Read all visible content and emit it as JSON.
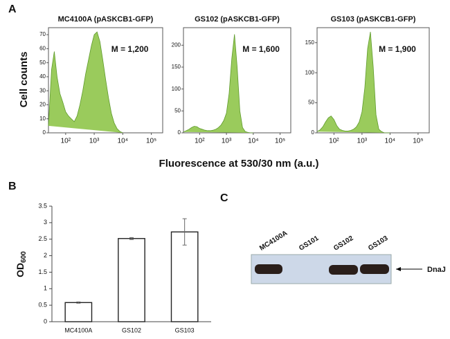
{
  "labels": {
    "panel_a": "A",
    "panel_b": "B",
    "panel_c": "C",
    "cell_counts": "Cell counts",
    "fluorescence": "Fluorescence at 530/30 nm (a.u.)"
  },
  "chart_data": [
    {
      "type": "area",
      "title": "MC4100A (pASKCB1-GFP)",
      "annotation": "M = 1,200",
      "color": "#9acb5c",
      "log_x": true,
      "x": [
        25,
        32,
        40,
        50,
        63,
        79,
        100,
        126,
        158,
        200,
        251,
        316,
        398,
        501,
        631,
        794,
        1000,
        1259,
        1585,
        1995,
        2512,
        3162,
        3981,
        5012,
        6310,
        7943,
        10000
      ],
      "values": [
        5,
        45,
        58,
        40,
        28,
        22,
        15,
        12,
        10,
        8,
        12,
        20,
        30,
        42,
        52,
        62,
        70,
        72,
        65,
        52,
        38,
        25,
        14,
        7,
        3,
        1,
        0
      ],
      "xlim": [
        25,
        250000
      ],
      "xticks": [
        {
          "value": 100,
          "label": "10²"
        },
        {
          "value": 1000,
          "label": "10³"
        },
        {
          "value": 10000,
          "label": "10⁴"
        },
        {
          "value": 100000,
          "label": "10⁵"
        }
      ],
      "ylim": [
        0,
        75
      ],
      "yticks": [
        0,
        10,
        20,
        30,
        40,
        50,
        60,
        70
      ]
    },
    {
      "type": "area",
      "title": "GS102 (pASKCB1-GFP)",
      "annotation": "M = 1,600",
      "color": "#9acb5c",
      "log_x": true,
      "x": [
        25,
        32,
        40,
        50,
        63,
        79,
        100,
        126,
        158,
        200,
        251,
        316,
        398,
        501,
        631,
        794,
        1000,
        1259,
        1585,
        1995,
        2512,
        3162,
        3981,
        5012,
        6310,
        7943,
        10000
      ],
      "values": [
        2,
        5,
        8,
        12,
        15,
        14,
        10,
        8,
        6,
        5,
        5,
        6,
        8,
        12,
        18,
        28,
        45,
        90,
        170,
        225,
        150,
        50,
        12,
        3,
        1,
        0,
        0
      ],
      "xlim": [
        25,
        250000
      ],
      "xticks": [
        {
          "value": 100,
          "label": "10²"
        },
        {
          "value": 1000,
          "label": "10³"
        },
        {
          "value": 10000,
          "label": "10⁴"
        },
        {
          "value": 100000,
          "label": "10⁵"
        }
      ],
      "ylim": [
        0,
        240
      ],
      "yticks": [
        0,
        50,
        100,
        150,
        200
      ]
    },
    {
      "type": "area",
      "title": "GS103 (pASKCB1-GFP)",
      "annotation": "M = 1,900",
      "color": "#9acb5c",
      "log_x": true,
      "x": [
        25,
        32,
        40,
        50,
        63,
        79,
        100,
        126,
        158,
        200,
        251,
        316,
        398,
        501,
        631,
        794,
        1000,
        1259,
        1585,
        1995,
        2512,
        3162,
        3981,
        5012,
        6310,
        7943,
        10000
      ],
      "values": [
        2,
        5,
        10,
        18,
        25,
        28,
        22,
        12,
        6,
        4,
        3,
        3,
        4,
        6,
        10,
        18,
        35,
        75,
        140,
        168,
        110,
        30,
        6,
        2,
        0,
        0,
        0
      ],
      "xlim": [
        25,
        250000
      ],
      "xticks": [
        {
          "value": 100,
          "label": "10²"
        },
        {
          "value": 1000,
          "label": "10³"
        },
        {
          "value": 10000,
          "label": "10⁴"
        },
        {
          "value": 100000,
          "label": "10⁵"
        }
      ],
      "ylim": [
        0,
        175
      ],
      "yticks": [
        0,
        50,
        100,
        150
      ]
    },
    {
      "type": "bar",
      "y_label": "OD",
      "y_label_subscript": "600",
      "color": "#ffffff",
      "categories": [
        "MC4100A",
        "GS102",
        "GS103"
      ],
      "values": [
        0.58,
        2.52,
        2.72
      ],
      "errors": [
        0.02,
        0.03,
        0.4
      ],
      "ylim": [
        0,
        3.5
      ],
      "yticks": [
        0,
        0.5,
        1,
        1.5,
        2,
        2.5,
        3,
        3.5
      ]
    }
  ],
  "blot": {
    "lanes": [
      "MC4100A",
      "GS101",
      "GS102",
      "GS103"
    ],
    "band_label": "DnaJ"
  }
}
